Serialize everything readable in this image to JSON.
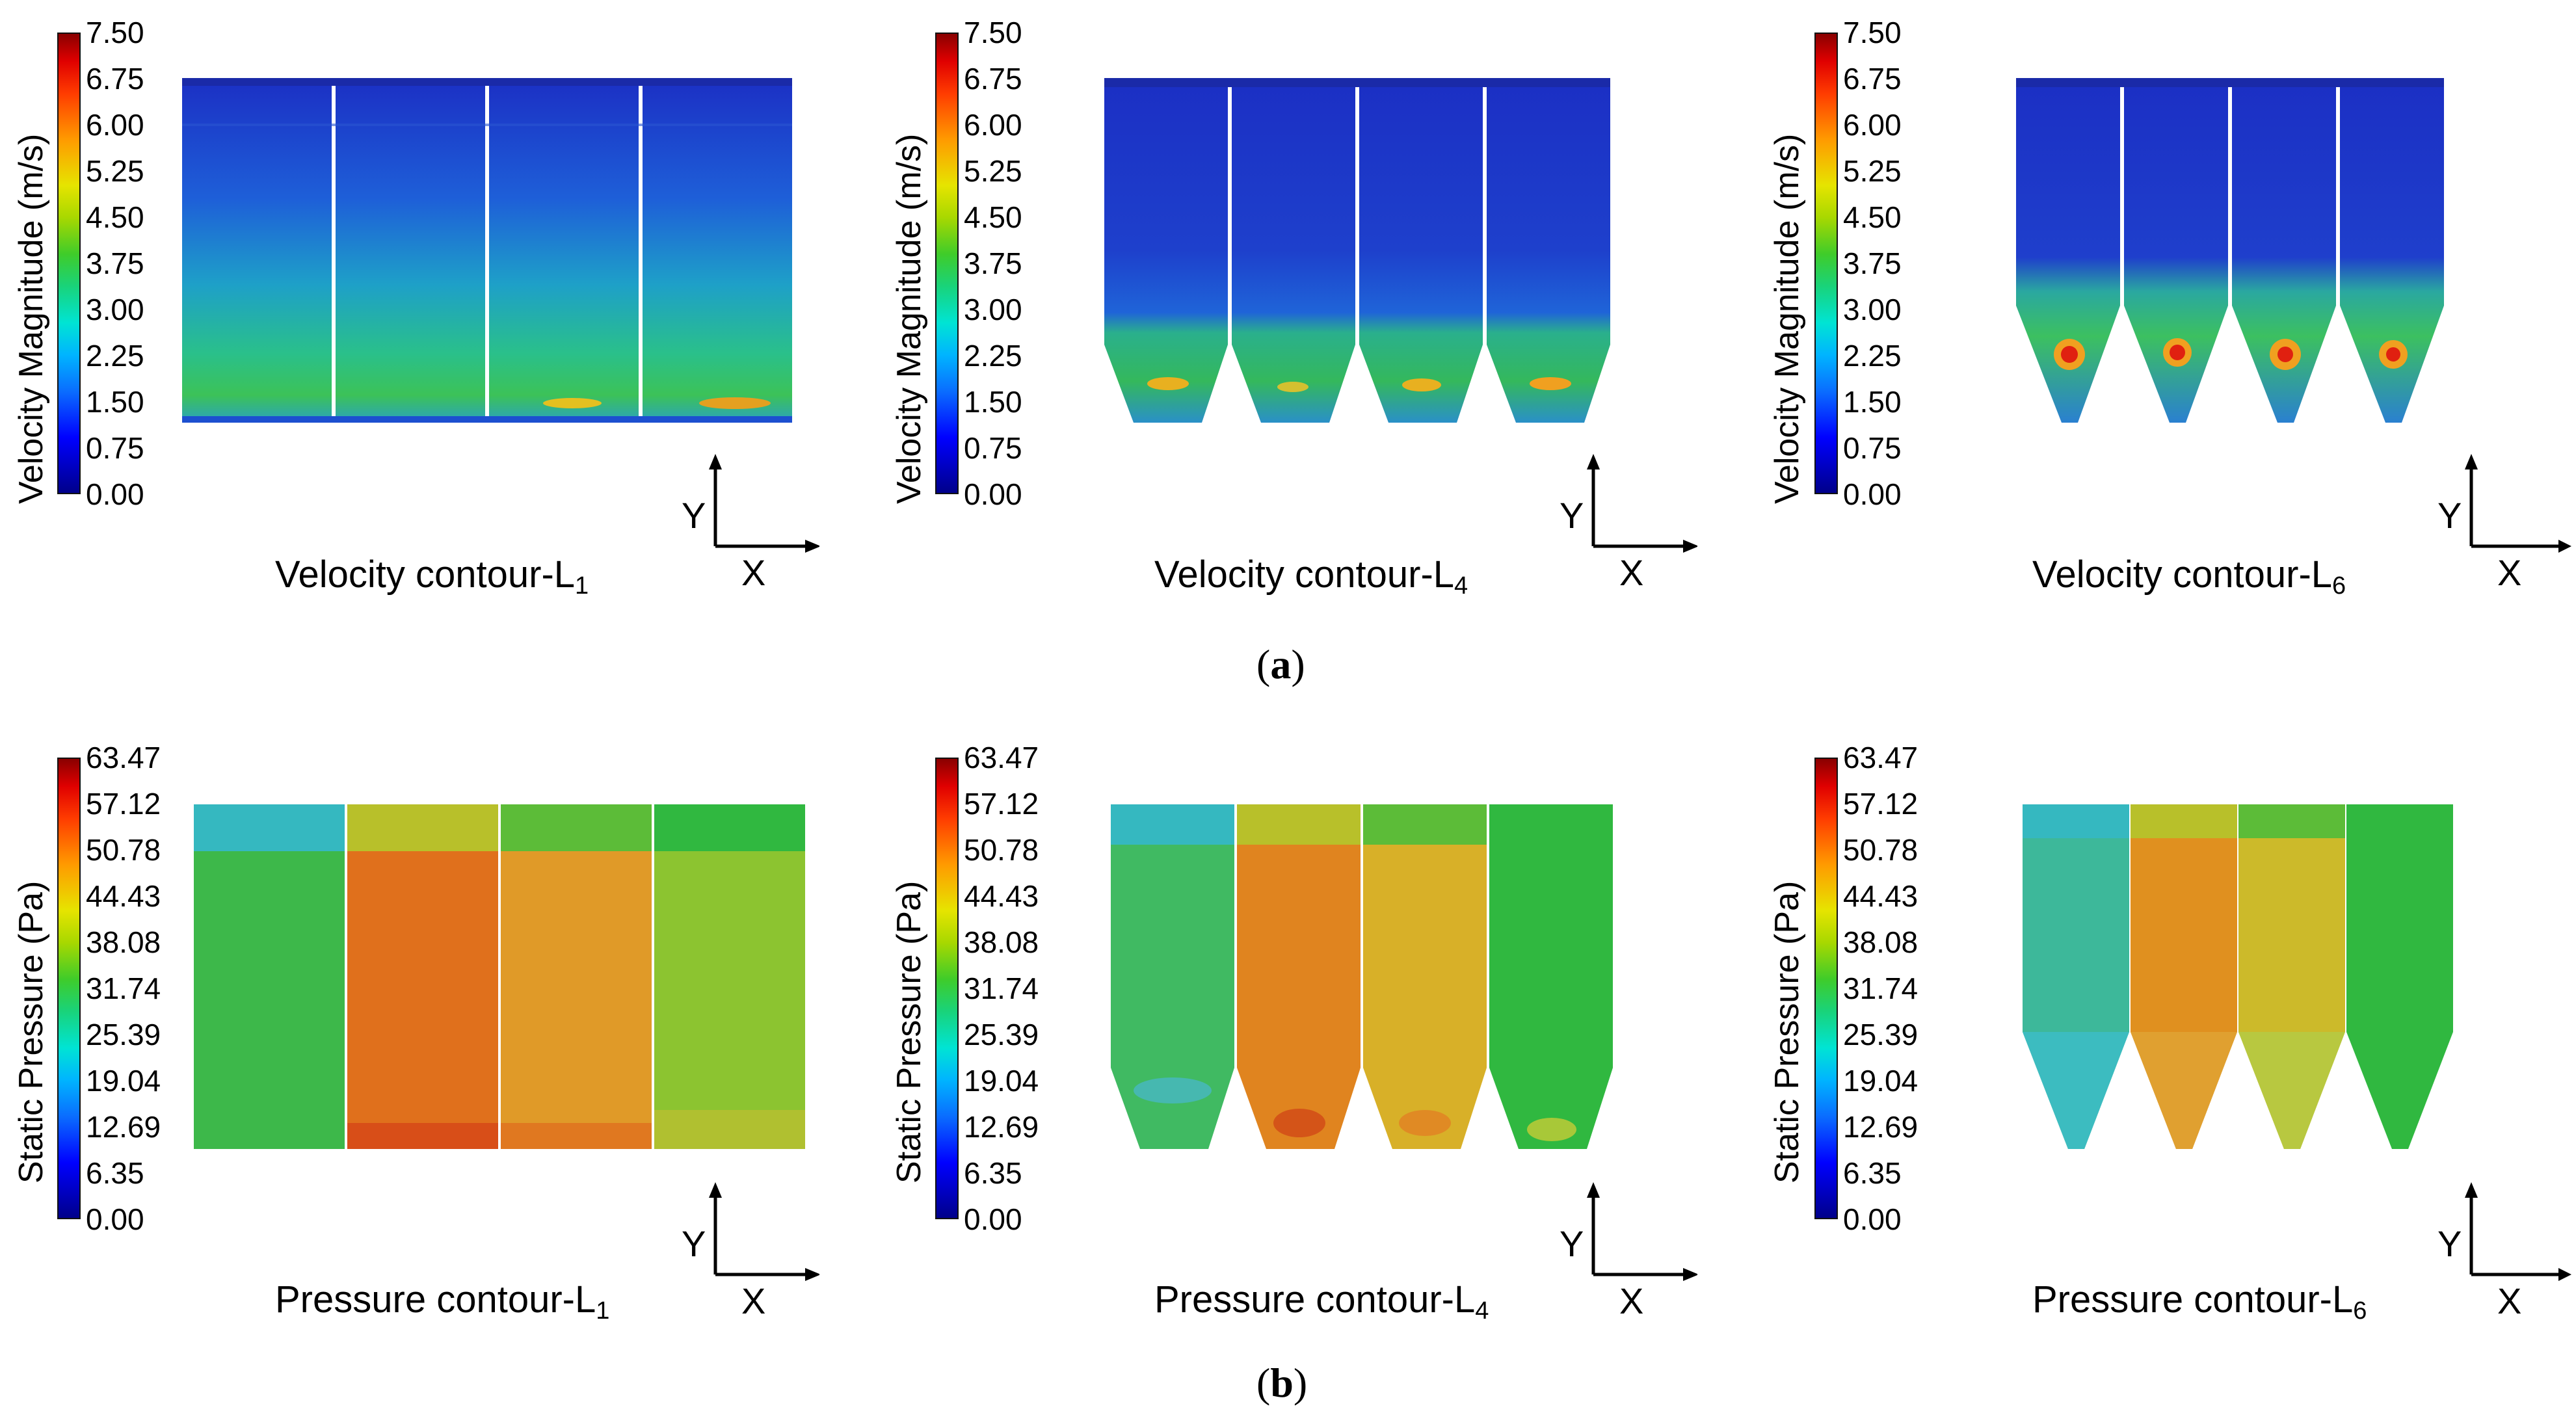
{
  "colors": {
    "deep_blue": "#1f2db8",
    "blue": "#2a3fd0",
    "cyan": "#3cc0cf",
    "teal": "#2fbf9a",
    "green": "#3dc24a",
    "lime": "#7ec83a",
    "yellow_green": "#b8c72a",
    "orange": "#f08a20",
    "red_orange": "#e8541a",
    "red": "#e21a10",
    "dark_red": "#8a0000"
  },
  "velocity_colorbar": {
    "title": "Velocity Magnitude (m/s)",
    "ticks": [
      "7.50",
      "6.75",
      "6.00",
      "5.25",
      "4.50",
      "3.75",
      "3.00",
      "2.25",
      "1.50",
      "0.75",
      "0.00"
    ],
    "min": 0.0,
    "max": 7.5
  },
  "pressure_colorbar": {
    "title": "Static Pressure (Pa)",
    "ticks": [
      "63.47",
      "57.12",
      "50.78",
      "44.43",
      "38.08",
      "31.74",
      "25.39",
      "19.04",
      "12.69",
      "6.35",
      "0.00"
    ],
    "min": 0.0,
    "max": 63.47
  },
  "axis": {
    "y": "Y",
    "x": "X"
  },
  "panels_a": [
    {
      "caption": "Velocity contour-L",
      "subscript": "1"
    },
    {
      "caption": "Velocity contour-L",
      "subscript": "4"
    },
    {
      "caption": "Velocity contour-L",
      "subscript": "6"
    }
  ],
  "panels_b": [
    {
      "caption": "Pressure contour-L",
      "subscript": "1"
    },
    {
      "caption": "Pressure contour-L",
      "subscript": "4"
    },
    {
      "caption": "Pressure contour-L",
      "subscript": "6"
    }
  ],
  "sub_labels": {
    "a": "a",
    "b": "b"
  }
}
